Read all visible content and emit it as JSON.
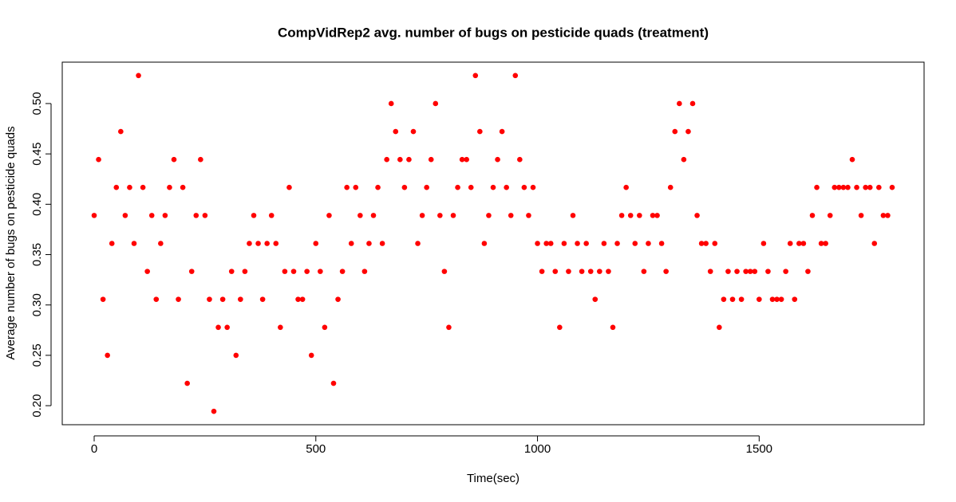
{
  "chart_data": {
    "type": "scatter",
    "title": "CompVidRep2 avg. number of bugs on pesticide quads (treatment)",
    "x_label": "Time(sec)",
    "y_label": "Average number of bugs on pesticide quads",
    "color": "#ff0000",
    "xlim": [
      -72,
      1872
    ],
    "ylim": [
      0.1811,
      0.5411
    ],
    "xticks": [
      0,
      500,
      1000,
      1500
    ],
    "yticks": [
      {
        "value": 0.2,
        "label": "0.20"
      },
      0.25,
      {
        "value": 0.3,
        "label": "0.30"
      },
      0.35,
      {
        "value": 0.4,
        "label": "0.40"
      },
      0.45,
      {
        "value": 0.5,
        "label": "0.50"
      }
    ],
    "x": [
      0,
      10,
      20,
      30,
      40,
      50,
      60,
      70,
      80,
      90,
      100,
      110,
      120,
      130,
      140,
      150,
      160,
      170,
      180,
      190,
      200,
      210,
      220,
      230,
      240,
      250,
      260,
      270,
      280,
      290,
      300,
      310,
      320,
      330,
      340,
      350,
      360,
      370,
      380,
      390,
      400,
      410,
      420,
      430,
      440,
      450,
      460,
      470,
      480,
      490,
      500,
      510,
      520,
      530,
      540,
      550,
      560,
      570,
      580,
      590,
      600,
      610,
      620,
      630,
      640,
      650,
      660,
      670,
      680,
      690,
      700,
      710,
      720,
      730,
      740,
      750,
      760,
      770,
      780,
      790,
      800,
      810,
      820,
      830,
      840,
      850,
      860,
      870,
      880,
      890,
      900,
      910,
      920,
      930,
      940,
      950,
      960,
      970,
      980,
      990,
      1000,
      1010,
      1020,
      1030,
      1040,
      1050,
      1060,
      1070,
      1080,
      1090,
      1100,
      1110,
      1120,
      1130,
      1140,
      1150,
      1160,
      1170,
      1180,
      1190,
      1200,
      1210,
      1220,
      1230,
      1240,
      1250,
      1260,
      1270,
      1280,
      1290,
      1300,
      1310,
      1320,
      1330,
      1340,
      1350,
      1360,
      1370,
      1380,
      1390,
      1400,
      1410,
      1420,
      1430,
      1440,
      1450,
      1460,
      1470,
      1480,
      1490,
      1500,
      1510,
      1520,
      1530,
      1540,
      1550,
      1560,
      1570,
      1580,
      1590,
      1600,
      1610,
      1620,
      1630,
      1640,
      1650,
      1660,
      1670,
      1680,
      1690,
      1700,
      1710,
      1720,
      1730,
      1740,
      1750,
      1760,
      1770,
      1780,
      1790,
      1800
    ],
    "values": [
      0.3889,
      0.4444,
      0.3056,
      0.25,
      0.3611,
      0.4167,
      0.4722,
      0.3889,
      0.4167,
      0.3611,
      0.5278,
      0.4167,
      0.3333,
      0.3889,
      0.3056,
      0.3611,
      0.3889,
      0.4167,
      0.4444,
      0.3056,
      0.4167,
      0.2222,
      0.3333,
      0.3889,
      0.4444,
      0.3889,
      0.3056,
      0.1944,
      0.2778,
      0.3056,
      0.2778,
      0.3333,
      0.25,
      0.3056,
      0.3333,
      0.3611,
      0.3889,
      0.3611,
      0.3056,
      0.3611,
      0.3889,
      0.3611,
      0.2778,
      0.3333,
      0.4167,
      0.3333,
      0.3056,
      0.3056,
      0.3333,
      0.25,
      0.3611,
      0.3333,
      0.2778,
      0.3889,
      0.2222,
      0.3056,
      0.3333,
      0.4167,
      0.3611,
      0.4167,
      0.3889,
      0.3333,
      0.3611,
      0.3889,
      0.4167,
      0.3611,
      0.4444,
      0.5,
      0.4722,
      0.4444,
      0.4167,
      0.4444,
      0.4722,
      0.3611,
      0.3889,
      0.4167,
      0.4444,
      0.5,
      0.3889,
      0.3333,
      0.2778,
      0.3889,
      0.4167,
      0.4444,
      0.4444,
      0.4167,
      0.5278,
      0.4722,
      0.3611,
      0.3889,
      0.4167,
      0.4444,
      0.4722,
      0.4167,
      0.3889,
      0.5278,
      0.4444,
      0.4167,
      0.3889,
      0.4167,
      0.3611,
      0.3333,
      0.3611,
      0.3611,
      0.3333,
      0.2778,
      0.3611,
      0.3333,
      0.3889,
      0.3611,
      0.3333,
      0.3611,
      0.3333,
      0.3056,
      0.3333,
      0.3611,
      0.3333,
      0.2778,
      0.3611,
      0.3889,
      0.4167,
      0.3889,
      0.3611,
      0.3889,
      0.3333,
      0.3611,
      0.3889,
      0.3889,
      0.3611,
      0.3333,
      0.4167,
      0.4722,
      0.5,
      0.4444,
      0.4722,
      0.5,
      0.3889,
      0.3611,
      0.3611,
      0.3333,
      0.3611,
      0.2778,
      0.3056,
      0.3333,
      0.3056,
      0.3333,
      0.3056,
      0.3333,
      0.3333,
      0.3333,
      0.3056,
      0.3611,
      0.3333,
      0.3056,
      0.3056,
      0.3056,
      0.3333,
      0.3611,
      0.3056,
      0.3611,
      0.3611,
      0.3333,
      0.3889,
      0.4167,
      0.3611,
      0.3611,
      0.3889,
      0.4167,
      0.4167,
      0.4167,
      0.4167,
      0.4444,
      0.4167,
      0.3889,
      0.4167,
      0.4167,
      0.3611,
      0.4167,
      0.3889,
      0.3889,
      0.4167
    ]
  }
}
